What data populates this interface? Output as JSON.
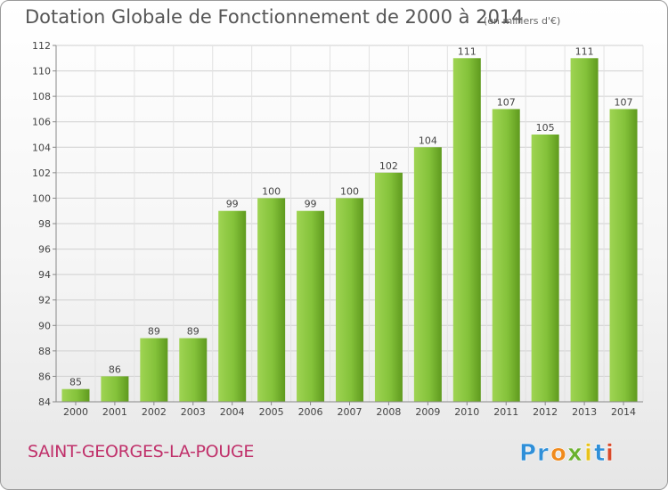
{
  "chart_data": {
    "type": "bar",
    "title": "Dotation Globale de Fonctionnement de 2000 à 2014",
    "subtitle": "(en milliers d'€)",
    "categories": [
      "2000",
      "2001",
      "2002",
      "2003",
      "2004",
      "2005",
      "2006",
      "2007",
      "2008",
      "2009",
      "2010",
      "2011",
      "2012",
      "2013",
      "2014"
    ],
    "values": [
      85,
      86,
      89,
      89,
      99,
      100,
      99,
      100,
      102,
      104,
      111,
      107,
      105,
      111,
      107
    ],
    "ylim": [
      84,
      112
    ],
    "yticks": [
      84,
      86,
      88,
      90,
      92,
      94,
      96,
      98,
      100,
      102,
      104,
      106,
      108,
      110,
      112
    ],
    "xlabel": "",
    "ylabel": "",
    "grid": true,
    "bar_color": "#78b832"
  },
  "commune_name": "SAINT-GEORGES-LA-POUGE",
  "logo": {
    "text": "Proxiti",
    "letters": [
      "P",
      "r",
      "o",
      "x",
      "i",
      "t",
      "i"
    ],
    "colors": [
      "#2f8fd8",
      "#2f8fd8",
      "#f08a1c",
      "#6ab12e",
      "#e8c21a",
      "#2f8fd8",
      "#d84a2a"
    ]
  }
}
